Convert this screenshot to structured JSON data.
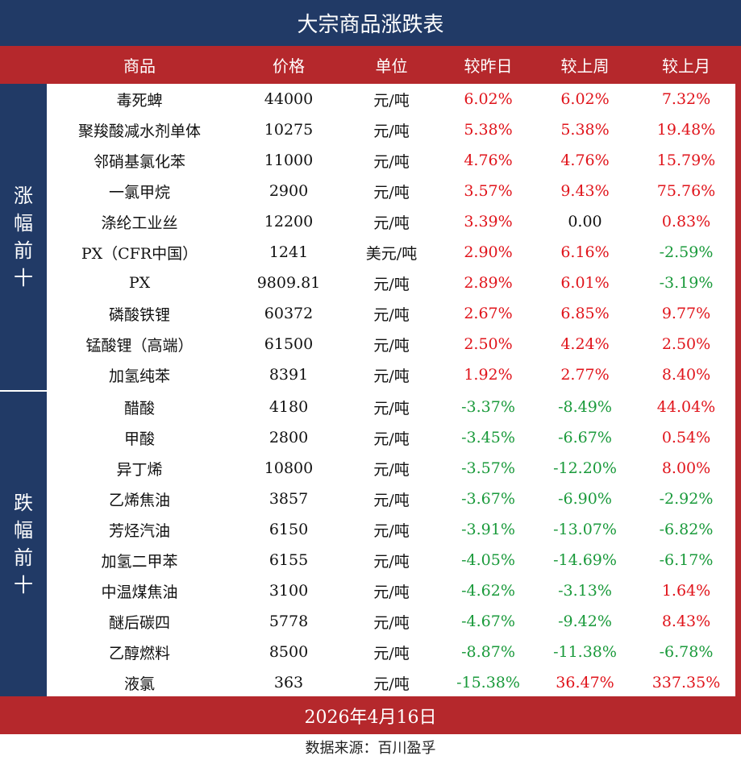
{
  "title": "大宗商品涨跌表",
  "headers": {
    "name": "商品",
    "price": "价格",
    "unit": "单位",
    "day": "较昨日",
    "week": "较上周",
    "month": "较上月"
  },
  "groups": {
    "top": "涨幅前十",
    "bottom": "跌幅前十"
  },
  "rows": [
    {
      "name": "毒死蜱",
      "price": "44000",
      "unit": "元/吨",
      "day": "6.02%",
      "week": "6.02%",
      "month": "7.32%"
    },
    {
      "name": "聚羧酸减水剂单体",
      "price": "10275",
      "unit": "元/吨",
      "day": "5.38%",
      "week": "5.38%",
      "month": "19.48%"
    },
    {
      "name": "邻硝基氯化苯",
      "price": "11000",
      "unit": "元/吨",
      "day": "4.76%",
      "week": "4.76%",
      "month": "15.79%"
    },
    {
      "name": "一氯甲烷",
      "price": "2900",
      "unit": "元/吨",
      "day": "3.57%",
      "week": "9.43%",
      "month": "75.76%"
    },
    {
      "name": "涤纶工业丝",
      "price": "12200",
      "unit": "元/吨",
      "day": "3.39%",
      "week": "0.00",
      "month": "0.83%"
    },
    {
      "name": "PX（CFR中国）",
      "price": "1241",
      "unit": "美元/吨",
      "day": "2.90%",
      "week": "6.16%",
      "month": "-2.59%"
    },
    {
      "name": "PX",
      "price": "9809.81",
      "unit": "元/吨",
      "day": "2.89%",
      "week": "6.01%",
      "month": "-3.19%"
    },
    {
      "name": "磷酸铁锂",
      "price": "60372",
      "unit": "元/吨",
      "day": "2.67%",
      "week": "6.85%",
      "month": "9.77%"
    },
    {
      "name": "锰酸锂（高端）",
      "price": "61500",
      "unit": "元/吨",
      "day": "2.50%",
      "week": "4.24%",
      "month": "2.50%"
    },
    {
      "name": "加氢纯苯",
      "price": "8391",
      "unit": "元/吨",
      "day": "1.92%",
      "week": "2.77%",
      "month": "8.40%"
    },
    {
      "name": "醋酸",
      "price": "4180",
      "unit": "元/吨",
      "day": "-3.37%",
      "week": "-8.49%",
      "month": "44.04%"
    },
    {
      "name": "甲酸",
      "price": "2800",
      "unit": "元/吨",
      "day": "-3.45%",
      "week": "-6.67%",
      "month": "0.54%"
    },
    {
      "name": "异丁烯",
      "price": "10800",
      "unit": "元/吨",
      "day": "-3.57%",
      "week": "-12.20%",
      "month": "8.00%"
    },
    {
      "name": "乙烯焦油",
      "price": "3857",
      "unit": "元/吨",
      "day": "-3.67%",
      "week": "-6.90%",
      "month": "-2.92%"
    },
    {
      "name": "芳烃汽油",
      "price": "6150",
      "unit": "元/吨",
      "day": "-3.91%",
      "week": "-13.07%",
      "month": "-6.82%"
    },
    {
      "name": "加氢二甲苯",
      "price": "6155",
      "unit": "元/吨",
      "day": "-4.05%",
      "week": "-14.69%",
      "month": "-6.17%"
    },
    {
      "name": "中温煤焦油",
      "price": "3100",
      "unit": "元/吨",
      "day": "-4.62%",
      "week": "-3.13%",
      "month": "1.64%"
    },
    {
      "name": "醚后碳四",
      "price": "5778",
      "unit": "元/吨",
      "day": "-4.67%",
      "week": "-9.42%",
      "month": "8.43%"
    },
    {
      "name": "乙醇燃料",
      "price": "8500",
      "unit": "元/吨",
      "day": "-8.87%",
      "week": "-11.38%",
      "month": "-6.78%"
    },
    {
      "name": "液氯",
      "price": "363",
      "unit": "元/吨",
      "day": "-15.38%",
      "week": "36.47%",
      "month": "337.35%"
    }
  ],
  "date": "2026年4月16日",
  "source": "数据来源：百川盈孚",
  "colors": {
    "navy": "#213a66",
    "red_bar": "#b5282c",
    "up": "#e0141b",
    "down": "#1a9a3b"
  }
}
